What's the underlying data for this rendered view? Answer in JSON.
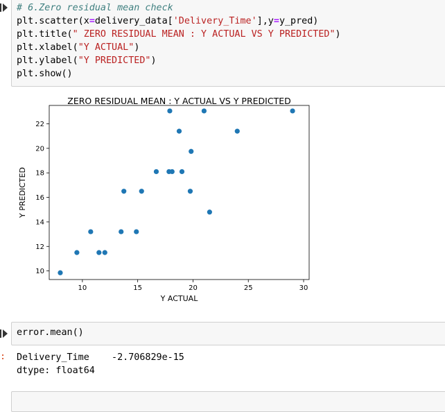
{
  "cell1": {
    "code_lines": [
      [
        {
          "t": "# 6.Zero residual mean check",
          "c": "comment"
        }
      ],
      [
        {
          "t": "plt.scatter(x",
          "c": ""
        },
        {
          "t": "=",
          "c": "op"
        },
        {
          "t": "delivery_data[",
          "c": ""
        },
        {
          "t": "'Delivery_Time'",
          "c": "str"
        },
        {
          "t": "],y",
          "c": ""
        },
        {
          "t": "=",
          "c": "op"
        },
        {
          "t": "y_pred)",
          "c": ""
        }
      ],
      [
        {
          "t": "plt.title(",
          "c": ""
        },
        {
          "t": "\" ZERO RESIDUAL MEAN : Y ACTUAL VS Y PREDICTED\"",
          "c": "str"
        },
        {
          "t": ")",
          "c": ""
        }
      ],
      [
        {
          "t": "plt.xlabel(",
          "c": ""
        },
        {
          "t": "\"Y ACTUAL\"",
          "c": "str"
        },
        {
          "t": ")",
          "c": ""
        }
      ],
      [
        {
          "t": "plt.ylabel(",
          "c": ""
        },
        {
          "t": "\"Y PREDICTED\"",
          "c": "str"
        },
        {
          "t": ")",
          "c": ""
        }
      ],
      [
        {
          "t": "plt.show()",
          "c": ""
        }
      ]
    ]
  },
  "chart_data": {
    "type": "scatter",
    "title": "ZERO RESIDUAL MEAN : Y ACTUAL VS Y PREDICTED",
    "xlabel": "Y ACTUAL",
    "ylabel": "Y PREDICTED",
    "xlim": [
      7,
      30.5
    ],
    "ylim": [
      9.3,
      23.5
    ],
    "xticks": [
      10,
      15,
      20,
      25,
      30
    ],
    "yticks": [
      10,
      12,
      14,
      16,
      18,
      20,
      22
    ],
    "grid": false,
    "point_color": "#1f77b4",
    "points": [
      [
        8.0,
        9.85
      ],
      [
        9.5,
        11.5
      ],
      [
        10.75,
        13.2
      ],
      [
        11.5,
        11.5
      ],
      [
        12.03,
        11.5
      ],
      [
        13.5,
        13.2
      ],
      [
        13.75,
        16.5
      ],
      [
        14.88,
        13.2
      ],
      [
        15.35,
        16.5
      ],
      [
        16.68,
        18.1
      ],
      [
        17.83,
        18.1
      ],
      [
        18.11,
        18.1
      ],
      [
        17.9,
        23.05
      ],
      [
        18.75,
        21.4
      ],
      [
        19.0,
        18.1
      ],
      [
        19.75,
        16.5
      ],
      [
        19.83,
        19.75
      ],
      [
        21.0,
        23.05
      ],
      [
        21.5,
        14.8
      ],
      [
        24.0,
        21.4
      ],
      [
        29.0,
        23.05
      ]
    ]
  },
  "cell2": {
    "code_lines": [
      [
        {
          "t": "error.mean()",
          "c": ""
        }
      ]
    ]
  },
  "output2": {
    "prompt": ":",
    "lines": [
      "Delivery_Time    -2.706829e-15",
      "dtype: float64"
    ]
  }
}
